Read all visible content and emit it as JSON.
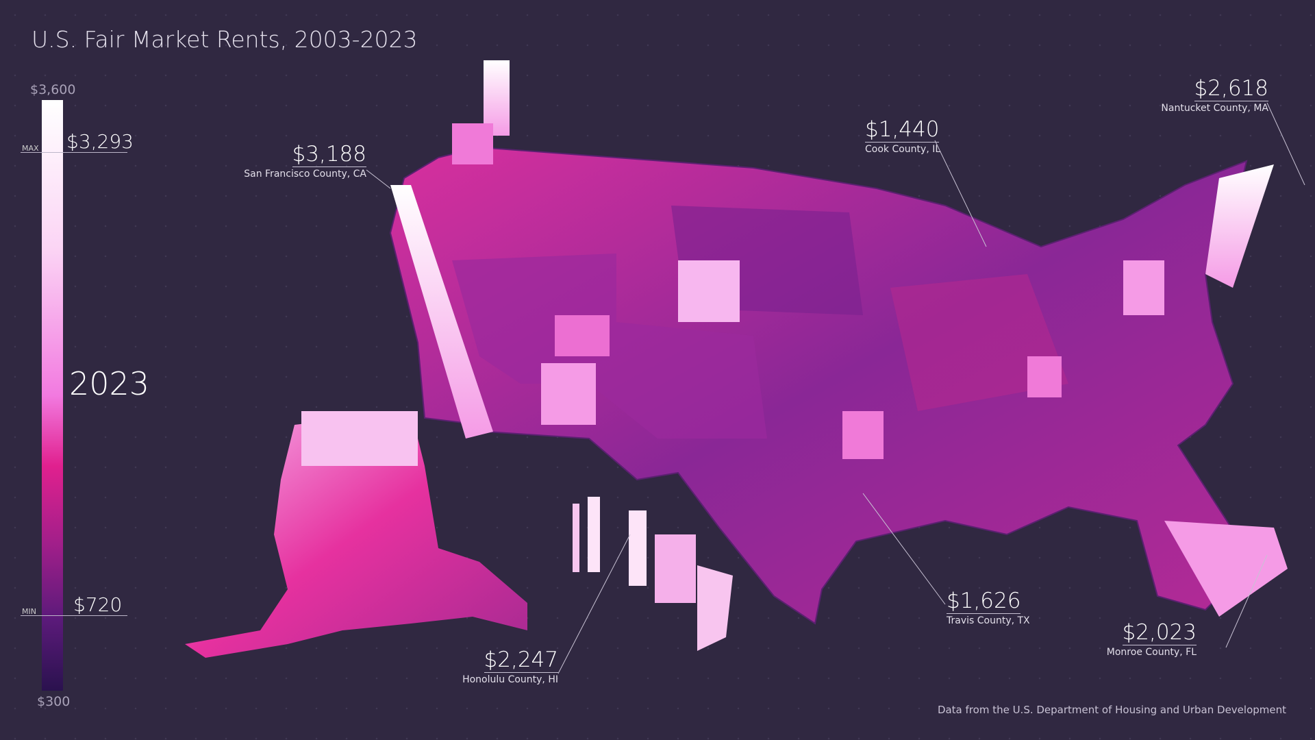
{
  "title": "U.S. Fair Market Rents, 2003-2023",
  "legend": {
    "top_label": "$3,600",
    "bottom_label": "$300",
    "max_tag": "MAX",
    "max_value": "$3,293",
    "min_tag": "MIN",
    "min_value": "$720",
    "year": "2023",
    "scale_min": 300,
    "scale_max": 3600,
    "colors": [
      "#2a124e",
      "#a21f8a",
      "#e0208e",
      "#f27ae0",
      "#ffffff"
    ]
  },
  "annotations": [
    {
      "value": "$3,188",
      "name": "San Francisco County, CA"
    },
    {
      "value": "$1,440",
      "name": "Cook County, IL"
    },
    {
      "value": "$2,618",
      "name": "Nantucket County, MA"
    },
    {
      "value": "$1,626",
      "name": "Travis County, TX"
    },
    {
      "value": "$2,023",
      "name": "Monroe County, FL"
    },
    {
      "value": "$2,247",
      "name": "Honolulu County, HI"
    }
  ],
  "source": "Data from the U.S. Department of Housing and Urban Development"
}
